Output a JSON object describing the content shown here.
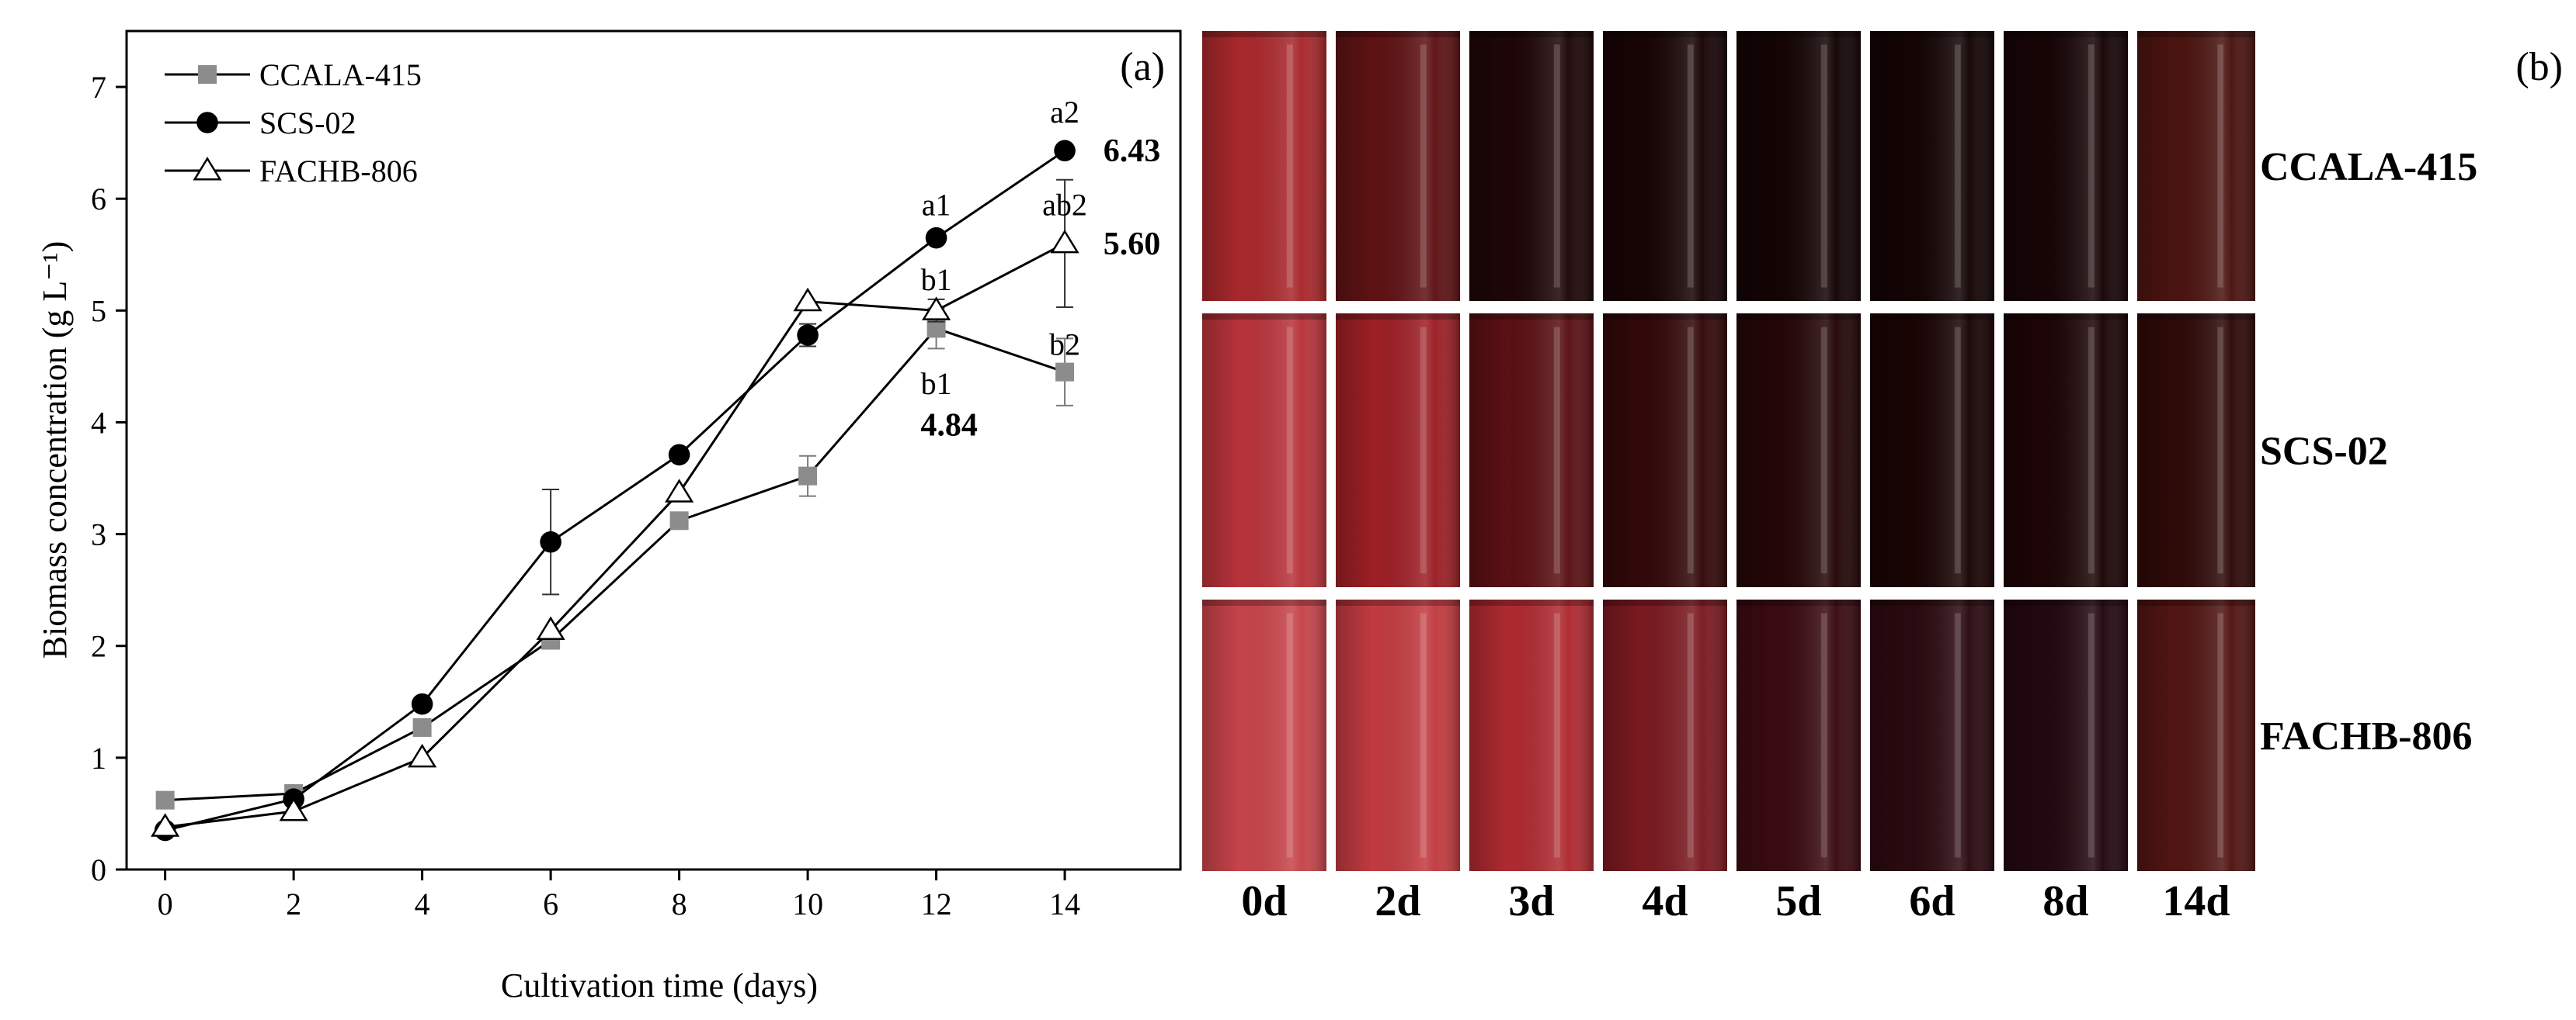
{
  "chart_data": {
    "type": "line",
    "panel_label": "(a)",
    "xlabel": "Cultivation time (days)",
    "ylabel": "Biomass concentration (g L⁻¹)",
    "xlim": [
      -0.6,
      15.8
    ],
    "ylim": [
      0,
      7.5
    ],
    "xticks": [
      0,
      2,
      4,
      6,
      8,
      10,
      12,
      14
    ],
    "yticks": [
      0,
      1,
      2,
      3,
      4,
      5,
      6,
      7
    ],
    "grid": false,
    "legend_position": "top-left",
    "series": [
      {
        "name": "CCALA-415",
        "marker": "square",
        "color": "#8c8c8c",
        "x": [
          0,
          2,
          4,
          6,
          8,
          10,
          12,
          14
        ],
        "y": [
          0.62,
          0.68,
          1.27,
          2.05,
          3.12,
          3.52,
          4.84,
          4.45
        ],
        "err": [
          0,
          0.05,
          0.05,
          0.05,
          0.05,
          0.18,
          0.18,
          0.3
        ]
      },
      {
        "name": "SCS-02",
        "marker": "circle",
        "color": "#000000",
        "x": [
          0,
          2,
          4,
          6,
          8,
          10,
          12,
          14
        ],
        "y": [
          0.35,
          0.63,
          1.48,
          2.93,
          3.71,
          4.78,
          5.65,
          6.43
        ],
        "err": [
          0,
          0.05,
          0.05,
          0.47,
          0.05,
          0.1,
          0.05,
          0.05
        ]
      },
      {
        "name": "FACHB-806",
        "marker": "triangle",
        "color": "#000000",
        "x": [
          0,
          2,
          4,
          6,
          8,
          10,
          12,
          14
        ],
        "y": [
          0.38,
          0.52,
          1.0,
          2.14,
          3.37,
          5.08,
          5.0,
          5.6
        ],
        "err": [
          0,
          0.05,
          0.05,
          0.05,
          0.05,
          0.05,
          0.1,
          0.57
        ]
      }
    ],
    "annotations": [
      {
        "text": "a2",
        "x": 14,
        "y": 6.78,
        "bold": false,
        "anchor": "middle"
      },
      {
        "text": "6.43",
        "x": 14.6,
        "y": 6.43,
        "bold": true,
        "anchor": "start"
      },
      {
        "text": "a1",
        "x": 12,
        "y": 5.95,
        "bold": false,
        "anchor": "middle"
      },
      {
        "text": "ab2",
        "x": 14,
        "y": 5.95,
        "bold": false,
        "anchor": "middle"
      },
      {
        "text": "5.60",
        "x": 14.6,
        "y": 5.6,
        "bold": true,
        "anchor": "start"
      },
      {
        "text": "b1",
        "x": 12,
        "y": 5.28,
        "bold": false,
        "anchor": "middle"
      },
      {
        "text": "b2",
        "x": 14,
        "y": 4.7,
        "bold": false,
        "anchor": "middle"
      },
      {
        "text": "b1",
        "x": 12,
        "y": 4.35,
        "bold": false,
        "anchor": "middle"
      },
      {
        "text": "4.84",
        "x": 12.2,
        "y": 3.98,
        "bold": true,
        "anchor": "middle"
      }
    ]
  },
  "photos": {
    "panel_label": "(b)",
    "days": [
      "0d",
      "2d",
      "3d",
      "4d",
      "5d",
      "6d",
      "8d",
      "14d"
    ],
    "rows": [
      {
        "strain": "CCALA-415",
        "colors": [
          "#a8282c",
          "#5e1214",
          "#1e0607",
          "#180405",
          "#140404",
          "#140404",
          "#170506",
          "#4a1410"
        ]
      },
      {
        "strain": "SCS-02",
        "colors": [
          "#b8333a",
          "#9c1f25",
          "#5a1014",
          "#320809",
          "#240607",
          "#190404",
          "#1d0506",
          "#2e0a08"
        ]
      },
      {
        "strain": "FACHB-806",
        "colors": [
          "#c6444a",
          "#c13b40",
          "#ad2a30",
          "#7a1a20",
          "#3a0b10",
          "#2a0a10",
          "#230810",
          "#501512"
        ]
      }
    ]
  }
}
